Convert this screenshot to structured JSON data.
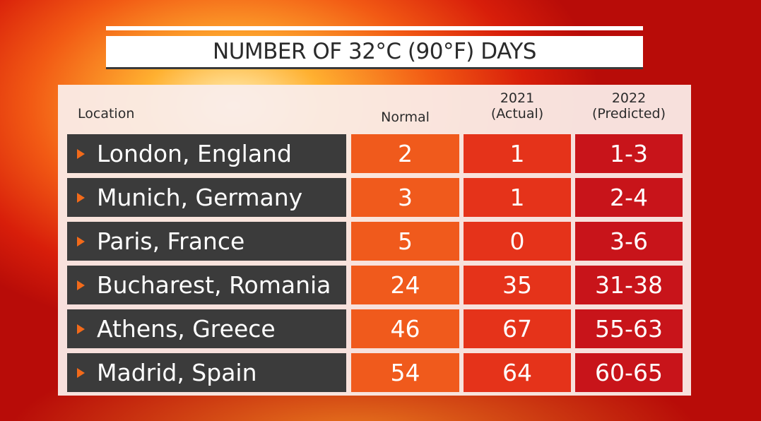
{
  "title": "NUMBER OF 32°C (90°F) DAYS",
  "table": {
    "headers": [
      "Location",
      "Normal",
      "2021\n(Actual)",
      "2022\n(Predicted)"
    ],
    "rows": [
      [
        "London, England",
        2,
        1,
        "1-3"
      ],
      [
        "Munich, Germany",
        3,
        1,
        "2-4"
      ],
      [
        "Paris, France",
        5,
        0,
        "3-6"
      ],
      [
        "Bucharest, Romania",
        24,
        35,
        "31-38"
      ],
      [
        "Athens, Greece",
        46,
        67,
        "55-63"
      ],
      [
        "Madrid, Spain",
        54,
        64,
        "60-65"
      ]
    ]
  }
}
